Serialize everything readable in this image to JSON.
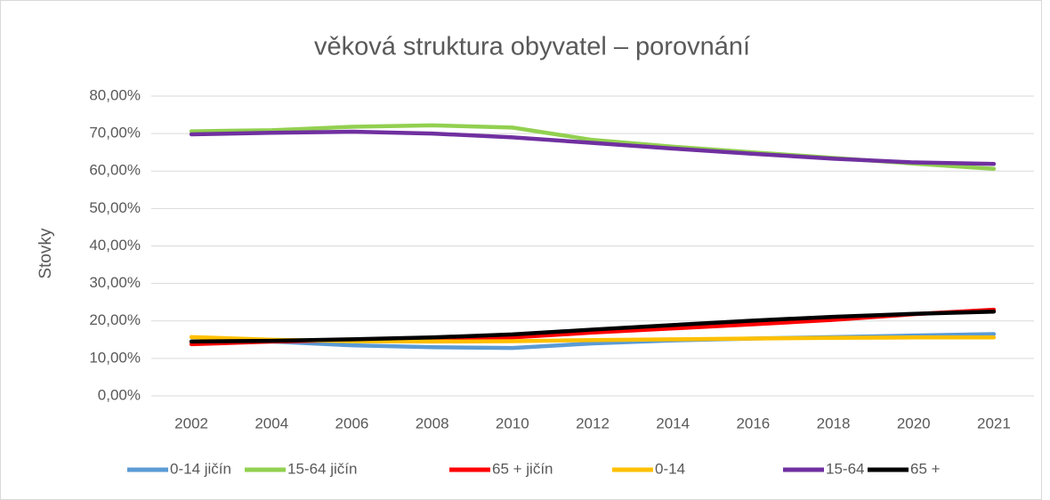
{
  "chart_data": {
    "type": "line",
    "title": "věková struktura obyvatel – porovnání",
    "y_label": "Stovky",
    "categories": [
      "2002",
      "2004",
      "2006",
      "2008",
      "2010",
      "2012",
      "2014",
      "2016",
      "2018",
      "2020",
      "2021"
    ],
    "series": [
      {
        "name": "0-14 jičín",
        "color": "#5b9bd5",
        "values": [
          14.5,
          14.5,
          13.5,
          13.0,
          12.8,
          14.0,
          14.8,
          15.3,
          15.7,
          16.1,
          16.5
        ]
      },
      {
        "name": "15-64 jičín",
        "color": "#92d050",
        "values": [
          70.6,
          70.9,
          71.8,
          72.2,
          71.6,
          68.3,
          66.5,
          65.0,
          63.5,
          62.0,
          60.6
        ]
      },
      {
        "name": "65 + jičín",
        "color": "#ff0000",
        "values": [
          13.8,
          14.5,
          14.9,
          15.3,
          15.6,
          16.9,
          18.0,
          19.1,
          20.3,
          21.8,
          23.0
        ]
      },
      {
        "name": "0-14",
        "color": "#ffc000",
        "values": [
          15.7,
          15.0,
          14.6,
          14.5,
          14.6,
          14.9,
          15.1,
          15.3,
          15.5,
          15.6,
          15.6
        ]
      },
      {
        "name": "15-64",
        "color": "#7030a0",
        "values": [
          69.8,
          70.2,
          70.5,
          70.0,
          69.0,
          67.5,
          66.0,
          64.6,
          63.3,
          62.3,
          61.9
        ]
      },
      {
        "name": "65 +",
        "color": "#000000",
        "values": [
          14.5,
          14.7,
          15.1,
          15.6,
          16.4,
          17.7,
          18.9,
          20.1,
          21.1,
          21.9,
          22.5
        ]
      }
    ],
    "ylim": [
      0,
      80
    ],
    "yticks": [
      {
        "value": 0,
        "label": "0,00%"
      },
      {
        "value": 10,
        "label": "10,00%"
      },
      {
        "value": 20,
        "label": "20,00%"
      },
      {
        "value": 30,
        "label": "30,00%"
      },
      {
        "value": 40,
        "label": "40,00%"
      },
      {
        "value": 50,
        "label": "50,00%"
      },
      {
        "value": 60,
        "label": "60,00%"
      },
      {
        "value": 70,
        "label": "70,00%"
      },
      {
        "value": 80,
        "label": "80,00%"
      }
    ],
    "grid": true,
    "legend": "bottom"
  }
}
